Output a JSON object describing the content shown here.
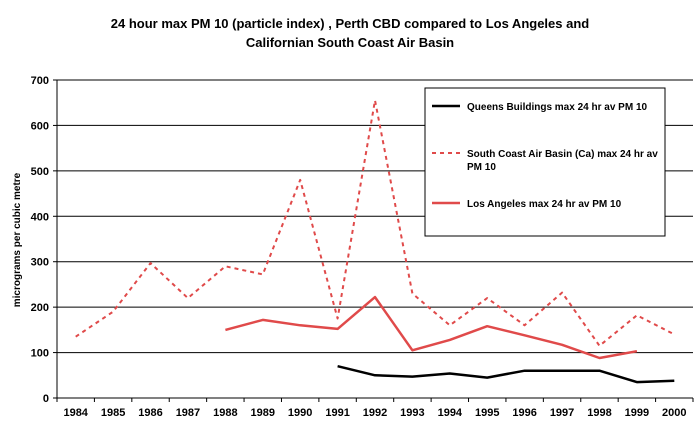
{
  "chart_data": {
    "type": "line",
    "title_lines": [
      "24 hour max PM 10 (particle index) , Perth CBD compared to Los Angeles and",
      "Californian South Coast Air Basin"
    ],
    "ylabel": "micrograms per cubic metre",
    "xlabel": "",
    "x": [
      1984,
      1985,
      1986,
      1987,
      1988,
      1989,
      1990,
      1991,
      1992,
      1993,
      1994,
      1995,
      1996,
      1997,
      1998,
      1999,
      2000
    ],
    "x_tick_labels": [
      "1984",
      "1985",
      "1986",
      "1987",
      "1988",
      "1989",
      "1990",
      "1991",
      "1992",
      "1993",
      "1994",
      "1995",
      "1996",
      "1997",
      "1998",
      "1999",
      "2000"
    ],
    "ylim": [
      0,
      700
    ],
    "y_ticks": [
      0,
      100,
      200,
      300,
      400,
      500,
      600,
      700
    ],
    "y_tick_labels": [
      "0",
      "100",
      "200",
      "300",
      "400",
      "500",
      "600",
      "700"
    ],
    "grid": "horizontal",
    "legend_position": "top-right",
    "series": [
      {
        "name": "Queens Buildings max 24 hr av PM 10",
        "name_lines": [
          "Queens Buildings max 24 hr av PM 10"
        ],
        "color": "#000000",
        "style": "solid",
        "values": [
          null,
          null,
          null,
          null,
          null,
          null,
          null,
          70,
          50,
          47,
          54,
          45,
          60,
          60,
          60,
          35,
          38
        ]
      },
      {
        "name": "South Coast Air Basin (Ca) max 24 hr av PM 10",
        "name_lines": [
          "South Coast Air Basin (Ca) max 24 hr av",
          "PM 10"
        ],
        "color": "#e04a4a",
        "style": "dashed",
        "values": [
          135,
          190,
          297,
          220,
          290,
          272,
          480,
          175,
          655,
          230,
          160,
          220,
          160,
          232,
          115,
          182,
          140
        ]
      },
      {
        "name": "Los Angeles max 24 hr av PM 10",
        "name_lines": [
          "Los Angeles max 24 hr av PM 10"
        ],
        "color": "#e04a4a",
        "style": "solid",
        "values": [
          null,
          null,
          null,
          null,
          150,
          172,
          160,
          152,
          222,
          105,
          128,
          158,
          138,
          117,
          88,
          103,
          null
        ]
      }
    ]
  }
}
